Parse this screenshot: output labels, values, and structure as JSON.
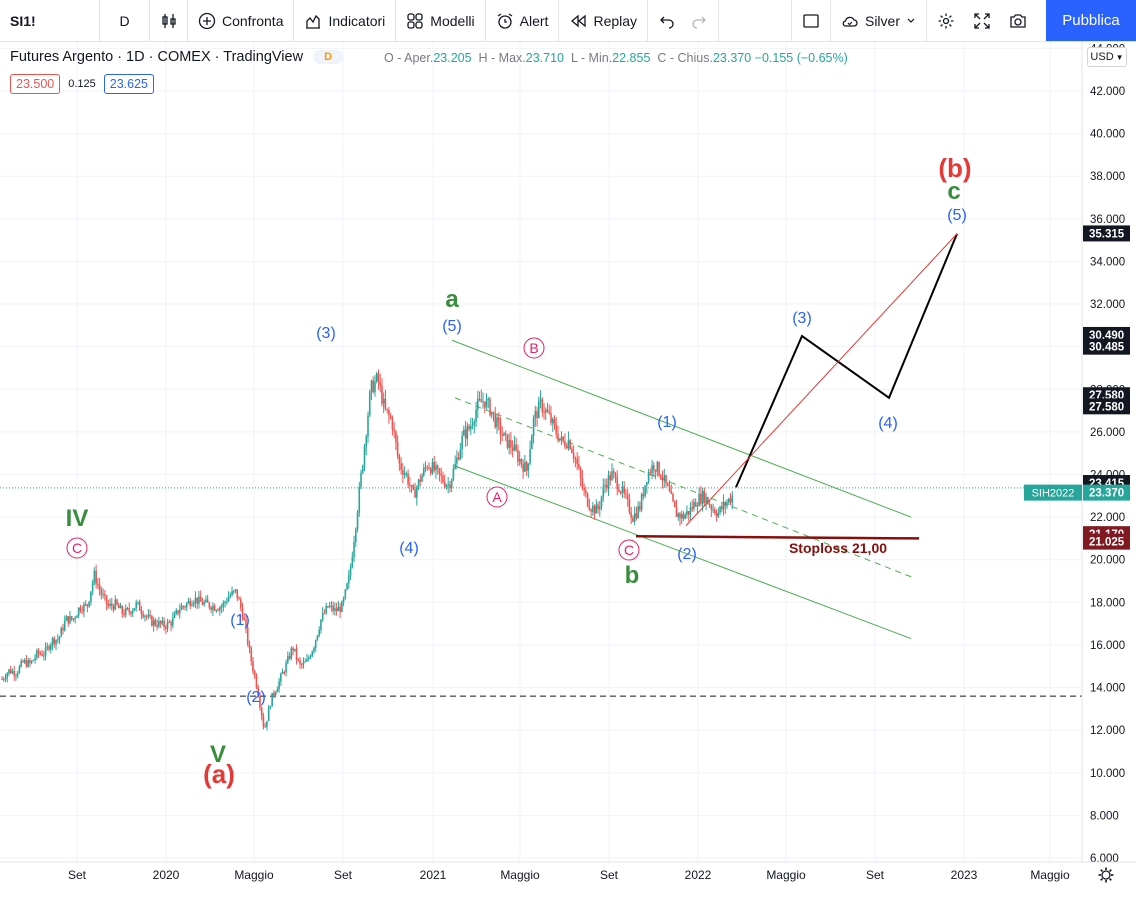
{
  "toolbar": {
    "symbol": "SI1!",
    "interval": "D",
    "compare": "Confronta",
    "indicators": "Indicatori",
    "templates": "Modelli",
    "alert": "Alert",
    "replay": "Replay",
    "theme": "Silver",
    "publish": "Pubblica"
  },
  "legend": {
    "title": "Futures Argento · 1D · COMEX · TradingView",
    "badge": "D",
    "open_label": "O - Aper.",
    "open": "23.205",
    "high_label": "H - Max.",
    "high": "23.710",
    "low_label": "L - Min.",
    "low": "22.855",
    "close_label": "C - Chius.",
    "close": "23.370",
    "change": "−0.155 (−0.65%)",
    "bid": "23.500",
    "spread": "0.125",
    "ask": "23.625"
  },
  "currency": "USD",
  "chart_data": {
    "type": "candlestick",
    "x_ticks": [
      "Set",
      "2020",
      "Maggio",
      "Set",
      "2021",
      "Maggio",
      "Set",
      "2022",
      "Maggio",
      "Set",
      "2023",
      "Maggio"
    ],
    "y_ticks": [
      "44.000",
      "42.000",
      "40.000",
      "38.000",
      "36.000",
      "34.000",
      "32.000",
      "30.000",
      "28.000",
      "26.000",
      "24.000",
      "22.000",
      "20.000",
      "18.000",
      "16.000",
      "14.000",
      "12.000",
      "10.000",
      "8.000",
      "6.000"
    ],
    "y_range": [
      6,
      44
    ],
    "price_path": [
      [
        14.4,
        14.8
      ],
      [
        14.7,
        15.2
      ],
      [
        15.1,
        15.6
      ],
      [
        15.6,
        16.2
      ],
      [
        16.3,
        17.2
      ],
      [
        17.2,
        17.8
      ],
      [
        17.8,
        19.3
      ],
      [
        18.4,
        17.8
      ],
      [
        17.9,
        17.5
      ],
      [
        17.6,
        17.9
      ],
      [
        17.5,
        17.1
      ],
      [
        17.0,
        16.9
      ],
      [
        17.1,
        17.7
      ],
      [
        17.9,
        18.2
      ],
      [
        18.0,
        17.9
      ],
      [
        17.8,
        17.8
      ],
      [
        18.3,
        18.5
      ],
      [
        17.4,
        15.5
      ],
      [
        14.0,
        12.0
      ],
      [
        13.5,
        14.2
      ],
      [
        15.0,
        15.9
      ],
      [
        15.0,
        15.2
      ],
      [
        16.0,
        17.2
      ],
      [
        17.8,
        17.6
      ],
      [
        17.8,
        19.2
      ],
      [
        22.0,
        25.0
      ],
      [
        28.0,
        28.5
      ],
      [
        27.0,
        26.5
      ],
      [
        24.5,
        24.0
      ],
      [
        23.0,
        23.8
      ],
      [
        24.5,
        24.2
      ],
      [
        23.8,
        23.5
      ],
      [
        24.5,
        25.8
      ],
      [
        26.2,
        27.2
      ],
      [
        27.5,
        27.0
      ],
      [
        26.2,
        25.6
      ],
      [
        25.3,
        24.7
      ],
      [
        24.2,
        26.6
      ],
      [
        27.3,
        26.8
      ],
      [
        26.1,
        25.5
      ],
      [
        25.6,
        24.6
      ],
      [
        23.2,
        22.5
      ],
      [
        22.3,
        23.5
      ],
      [
        24.0,
        23.5
      ],
      [
        22.8,
        22.0
      ],
      [
        22.5,
        24.0
      ],
      [
        24.5,
        24.0
      ],
      [
        23.2,
        22.2
      ],
      [
        22.0,
        22.3
      ],
      [
        22.8,
        23.0
      ],
      [
        22.5,
        22.2
      ],
      [
        22.6,
        23.0
      ]
    ],
    "horizontal_levels": [
      13.6
    ],
    "price_labels": [
      {
        "value": "35.315",
        "style": "dark"
      },
      {
        "value": "30.490",
        "style": "dark"
      },
      {
        "value": "30.485",
        "style": "dark"
      },
      {
        "value": "27.580",
        "style": "dark"
      },
      {
        "value": "27.580",
        "style": "dark"
      },
      {
        "value": "23.415",
        "style": "dark"
      },
      {
        "value": "23.370",
        "style": "teal"
      },
      {
        "value": "21.170",
        "style": "maroon"
      },
      {
        "value": "21.025",
        "style": "maroon"
      }
    ],
    "symbol_label": "SIH2022",
    "stoploss_label": "Stoploss 21,00",
    "wave_labels": {
      "IV": "IV",
      "V": "V",
      "a_big": "(a)",
      "b_big": "(b)",
      "a": "a",
      "b": "b",
      "c": "c",
      "w1": "(1)",
      "w2": "(2)",
      "w3": "(3)",
      "w4": "(4)",
      "w5": "(5)",
      "A": "A",
      "B": "B",
      "C": "C"
    },
    "colors": {
      "up": "#26a69a",
      "down": "#ef5350",
      "channel": "#4caf50",
      "wave_blue": "#2962ff",
      "wave_green": "#388e3c",
      "wave_red": "#e53935",
      "circle_label": "#e91e63",
      "stoploss": "#880e0e",
      "projection": "#000000"
    }
  }
}
